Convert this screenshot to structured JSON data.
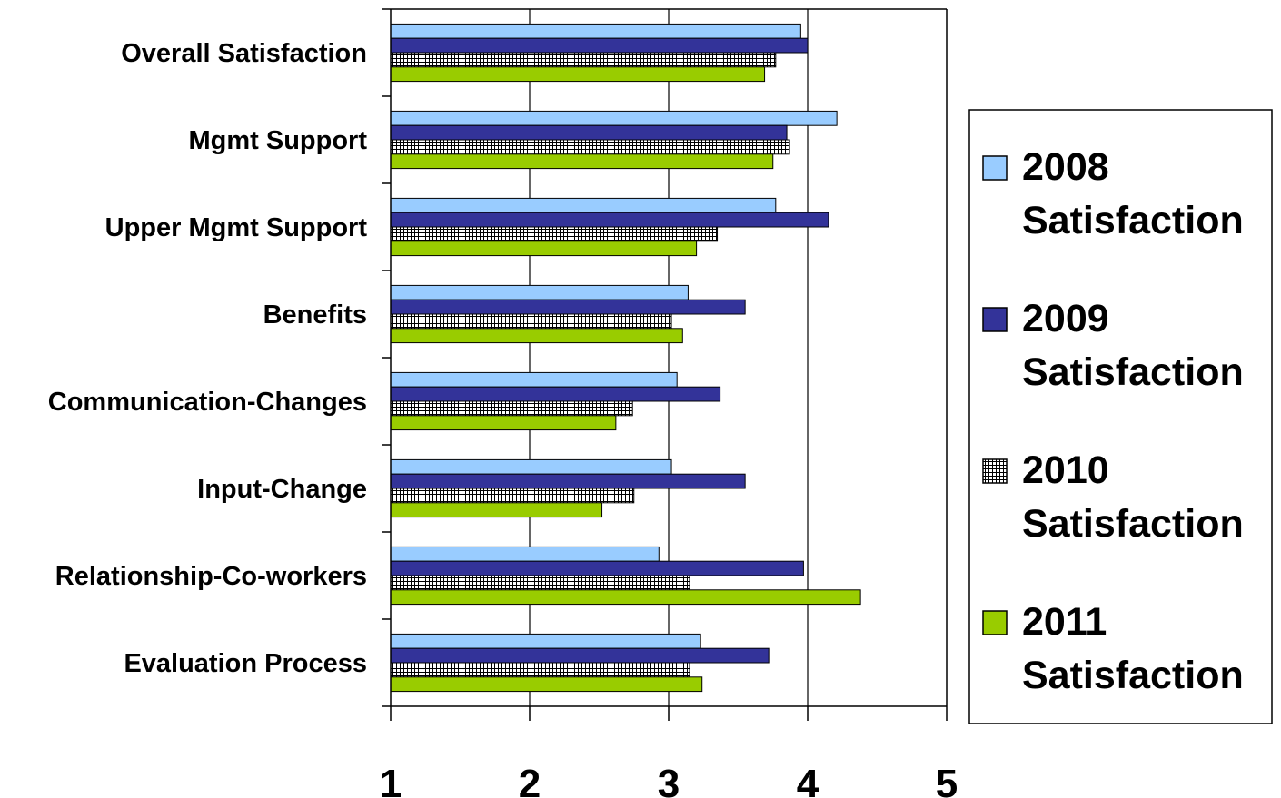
{
  "chart_data": {
    "type": "bar",
    "orientation": "horizontal",
    "categories": [
      "Overall Satisfaction",
      "Mgmt Support",
      "Upper Mgmt Support",
      "Benefits",
      "Communication-Changes",
      "Input-Change",
      "Relationship-Co-workers",
      "Evaluation Process"
    ],
    "series": [
      {
        "name": "2008 Satisfaction",
        "name_lines": [
          "2008",
          "Satisfaction"
        ],
        "color": "#99ccff",
        "pattern": "solid",
        "values": [
          3.95,
          4.21,
          3.77,
          3.14,
          3.06,
          3.02,
          2.93,
          3.23
        ]
      },
      {
        "name": "2009 Satisfaction",
        "name_lines": [
          "2009",
          "Satisfaction"
        ],
        "color": "#333399",
        "pattern": "solid",
        "values": [
          4.0,
          3.85,
          4.15,
          3.55,
          3.37,
          3.55,
          3.97,
          3.72
        ]
      },
      {
        "name": "2010 Satisfaction",
        "name_lines": [
          "2010",
          "Satisfaction"
        ],
        "color": "#ffffff",
        "pattern": "grid",
        "values": [
          3.77,
          3.87,
          3.35,
          3.02,
          2.74,
          2.75,
          3.15,
          3.15
        ]
      },
      {
        "name": "2011 Satisfaction",
        "name_lines": [
          "2011",
          "Satisfaction"
        ],
        "color": "#99cc00",
        "pattern": "solid",
        "values": [
          3.69,
          3.75,
          3.2,
          3.1,
          2.62,
          2.52,
          4.38,
          3.24
        ]
      }
    ],
    "xlim": [
      1,
      5
    ],
    "x_ticks": [
      "1",
      "2",
      "3",
      "4",
      "5"
    ],
    "grid": "vertical",
    "legend_position": "right",
    "title": "",
    "xlabel": "",
    "ylabel": ""
  }
}
